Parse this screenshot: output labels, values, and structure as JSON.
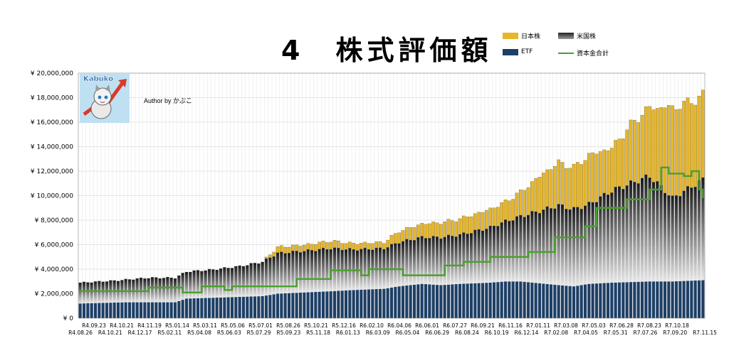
{
  "title": "4　株式評価額",
  "author": "Author by かぶこ",
  "logo_text": "Kabuko",
  "legend": {
    "jp": "日本株",
    "us": "米国株",
    "etf": "ETF",
    "capital": "資本金合計"
  },
  "colors": {
    "jp": "#e7b62a",
    "us": "#6b6b6b",
    "etf": "#1e3f66",
    "capital": "#4aa02c",
    "grid": "#c9c9c9",
    "avatar_bg": "#bfe0f2"
  },
  "chart_data": {
    "type": "bar",
    "stacked": true,
    "ylim": [
      0,
      20000000
    ],
    "y_ticks": [
      "¥ 0",
      "¥ 2,000,000",
      "¥ 4,000,000",
      "¥ 6,000,000",
      "¥ 8,000,000",
      "¥ 10,000,000",
      "¥ 12,000,000",
      "¥ 14,000,000",
      "¥ 16,000,000",
      "¥ 18,000,000",
      "¥ 20,000,000"
    ],
    "y_tick_values": [
      0,
      2000000,
      4000000,
      6000000,
      8000000,
      10000000,
      12000000,
      14000000,
      16000000,
      18000000,
      20000000
    ],
    "x_labels_upper": [
      "R4.09.23",
      "R4.10.21",
      "R4.11.19",
      "R5.01.14",
      "R5.03.11",
      "R5.05.06",
      "R5.07.01",
      "R5.08.26",
      "R5.10.21",
      "R5.12.16",
      "R6.02.10",
      "R6.04.06",
      "R6.06.01",
      "R6.07.27",
      "R6.09.21",
      "R6.11.16",
      "R7.01.11",
      "R7.03.08",
      "R7.05.03",
      "R7.06.28",
      "R7.08.23",
      "R7.10.18"
    ],
    "x_labels_lower": [
      "R4.08.26",
      "R4.10.21",
      "R4.12.17",
      "R5.02.11",
      "R5.04.08",
      "R5.06.03",
      "R5.07.29",
      "R5.09.23",
      "R5.11.18",
      "R6.01.13",
      "R6.03.09",
      "R6.05.04",
      "R6.06.29",
      "R6.08.24",
      "R6.10.19",
      "R6.12.14",
      "R7.02.08",
      "R7.04.05",
      "R7.05.31",
      "R7.07.26",
      "R7.09.20",
      "R7.11.15"
    ],
    "n_periods": 165,
    "series": [
      {
        "name": "ETF",
        "key": "etf",
        "knots_x": [
          0,
          12,
          15,
          25,
          28,
          48,
          52,
          66,
          72,
          80,
          84,
          90,
          95,
          100,
          108,
          112,
          116,
          126,
          130,
          134,
          140,
          150,
          156,
          164
        ],
        "knots_y": [
          1200000,
          1300000,
          1300000,
          1300000,
          1600000,
          1800000,
          2000000,
          2200000,
          2300000,
          2400000,
          2600000,
          2800000,
          2700000,
          2800000,
          2900000,
          3000000,
          3000000,
          2700000,
          2600000,
          2800000,
          2900000,
          3000000,
          3000000,
          3100000
        ]
      },
      {
        "name": "米国株",
        "key": "us",
        "knots_x": [
          0,
          10,
          18,
          25,
          28,
          35,
          42,
          48,
          52,
          60,
          66,
          72,
          80,
          84,
          90,
          100,
          108,
          116,
          126,
          130,
          134,
          140,
          150,
          156,
          164
        ],
        "knots_y": [
          1700000,
          1800000,
          2000000,
          2000000,
          2200000,
          2300000,
          2500000,
          2800000,
          3300000,
          3400000,
          3500000,
          3300000,
          3300000,
          3600000,
          3800000,
          4000000,
          4500000,
          5300000,
          6500000,
          6300000,
          6500000,
          7500000,
          8600000,
          6800000,
          8200000
        ]
      },
      {
        "name": "日本株",
        "key": "jp",
        "knots_x": [
          0,
          15,
          25,
          35,
          48,
          52,
          60,
          66,
          72,
          80,
          84,
          90,
          100,
          108,
          112,
          116,
          122,
          126,
          130,
          134,
          140,
          146,
          150,
          156,
          160,
          164
        ],
        "knots_y": [
          0,
          0,
          0,
          0,
          0,
          500000,
          500000,
          600000,
          500000,
          500000,
          900000,
          1100000,
          1300000,
          1500000,
          1600000,
          2000000,
          3000000,
          3500000,
          3400000,
          4000000,
          3500000,
          5000000,
          5600000,
          7400000,
          7000000,
          6900000
        ]
      },
      {
        "name": "資本金合計",
        "key": "capital",
        "type": "line",
        "steps": [
          [
            0,
            2200000
          ],
          [
            18,
            2500000
          ],
          [
            27,
            2100000
          ],
          [
            32,
            2600000
          ],
          [
            38,
            2300000
          ],
          [
            40,
            2600000
          ],
          [
            52,
            2600000
          ],
          [
            57,
            3200000
          ],
          [
            66,
            3900000
          ],
          [
            74,
            3500000
          ],
          [
            76,
            4000000
          ],
          [
            85,
            3500000
          ],
          [
            96,
            4300000
          ],
          [
            101,
            4600000
          ],
          [
            108,
            5000000
          ],
          [
            118,
            5400000
          ],
          [
            125,
            6600000
          ],
          [
            133,
            7500000
          ],
          [
            136,
            9000000
          ],
          [
            144,
            9700000
          ],
          [
            150,
            10500000
          ],
          [
            153,
            12300000
          ],
          [
            155,
            11800000
          ],
          [
            159,
            11600000
          ],
          [
            161,
            12000000
          ],
          [
            163,
            10500000
          ],
          [
            164,
            9800000
          ]
        ]
      }
    ]
  }
}
